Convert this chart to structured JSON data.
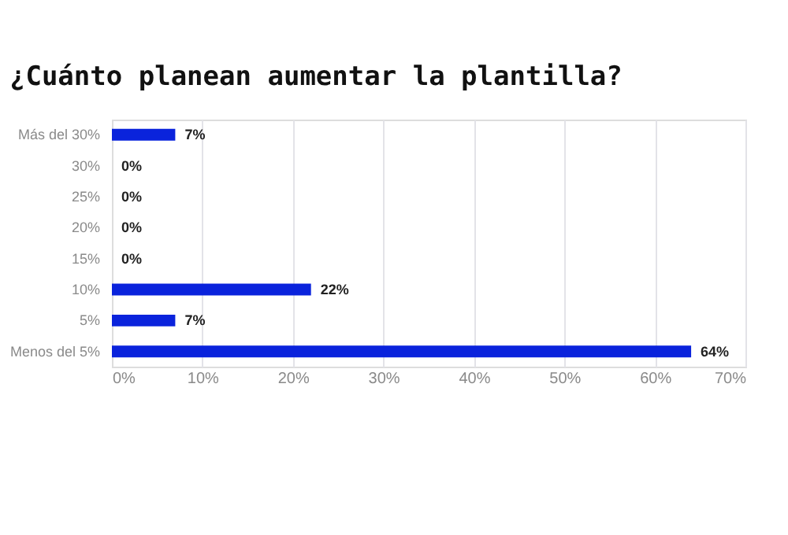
{
  "chart_data": {
    "type": "bar",
    "orientation": "horizontal",
    "title": "¿Cuánto planean aumentar la plantilla?",
    "categories": [
      "Más del 30%",
      "30%",
      "25%",
      "20%",
      "15%",
      "10%",
      "5%",
      "Menos del 5%"
    ],
    "values": [
      7,
      0,
      0,
      0,
      0,
      22,
      7,
      64
    ],
    "value_labels": [
      "7%",
      "0%",
      "0%",
      "0%",
      "0%",
      "22%",
      "7%",
      "64%"
    ],
    "color": "#0a23dc",
    "xlim": [
      0,
      70
    ],
    "xticks": [
      {
        "value": 0,
        "label": "0%"
      },
      {
        "value": 10,
        "label": "10%"
      },
      {
        "value": 20,
        "label": "20%"
      },
      {
        "value": 30,
        "label": "30%"
      },
      {
        "value": 40,
        "label": "40%"
      },
      {
        "value": 50,
        "label": "50%"
      },
      {
        "value": 60,
        "label": "60%"
      },
      {
        "value": 70,
        "label": "70%"
      }
    ],
    "grid": "x"
  }
}
